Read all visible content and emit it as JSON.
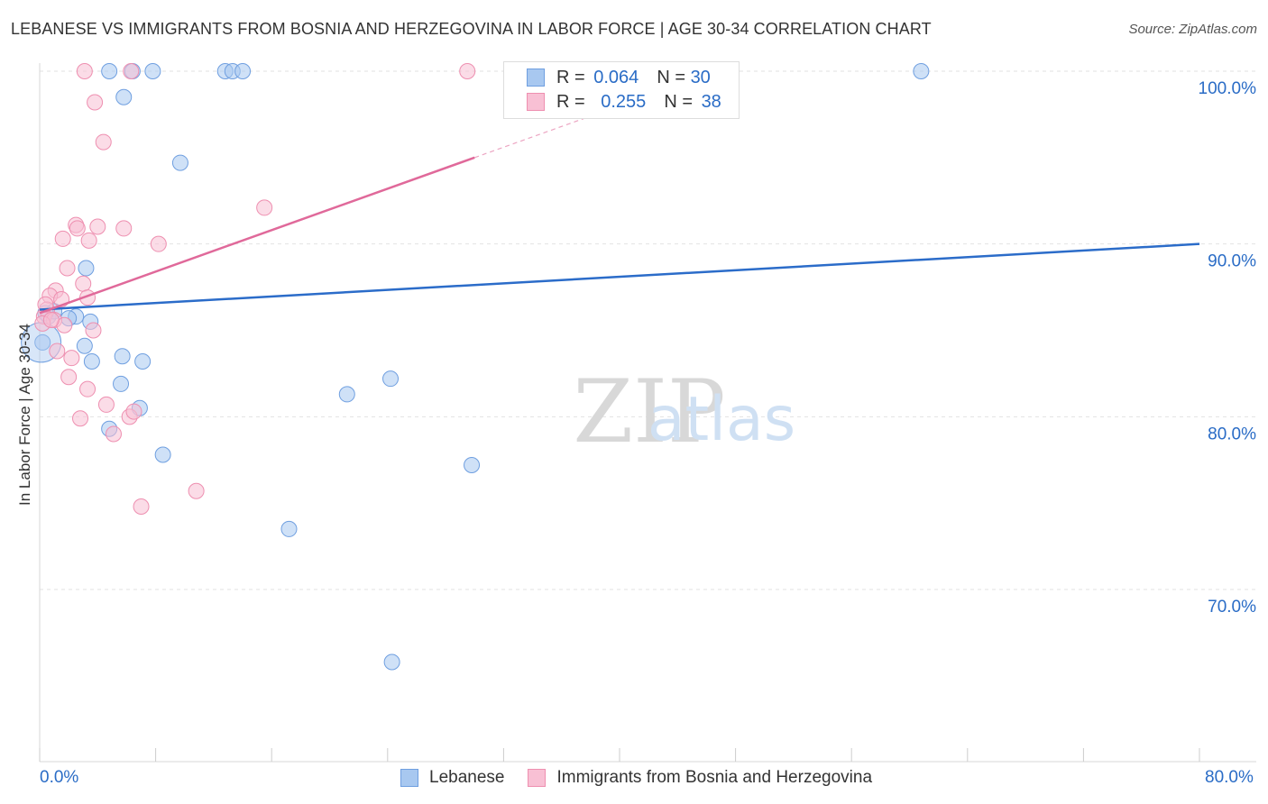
{
  "title": "LEBANESE VS IMMIGRANTS FROM BOSNIA AND HERZEGOVINA IN LABOR FORCE | AGE 30-34 CORRELATION CHART",
  "source": "Source: ZipAtlas.com",
  "watermark": {
    "zip": "ZIP",
    "atlas": "atlas"
  },
  "legend_top": {
    "rows": [
      {
        "r_label": "R =",
        "r_value": "0.064",
        "n_label": "N =",
        "n_value": "30",
        "color": "#a8c8f0",
        "border": "#6f9fe0"
      },
      {
        "r_label": "R =",
        "r_value": "0.255",
        "n_label": "N =",
        "n_value": "38",
        "color": "#f8c0d4",
        "border": "#ee8fb0"
      }
    ]
  },
  "legend_bottom": [
    {
      "label": "Lebanese",
      "color": "#a8c8f0",
      "border": "#6f9fe0"
    },
    {
      "label": "Immigrants from Bosnia and Herzegovina",
      "color": "#f8c0d4",
      "border": "#ee8fb0"
    }
  ],
  "x_min_label": "0.0%",
  "x_max_label": "80.0%",
  "chart_data": {
    "type": "scatter",
    "xlabel": "",
    "ylabel": "In Labor Force | Age 30-34",
    "xlim": [
      0,
      80
    ],
    "ylim": [
      60,
      102
    ],
    "y_ticks": [
      {
        "value": 100,
        "label": "100.0%"
      },
      {
        "value": 90,
        "label": "90.0%"
      },
      {
        "value": 80,
        "label": "80.0%"
      },
      {
        "value": 70,
        "label": "70.0%"
      }
    ],
    "x_ticks": [
      0,
      8,
      16,
      24,
      32,
      40,
      48,
      56,
      64,
      72,
      80
    ],
    "series": [
      {
        "name": "Lebanese",
        "color": "#a8c8f0",
        "stroke": "#6f9fe0",
        "line_color": "#2b6cc9",
        "trend": {
          "x0": 0,
          "y0": 86.2,
          "x1": 80,
          "y1": 90.0
        },
        "points": [
          [
            0.2,
            84.3
          ],
          [
            0.6,
            85.8
          ],
          [
            1.0,
            86.1
          ],
          [
            2.5,
            85.8
          ],
          [
            2.0,
            85.7
          ],
          [
            3.2,
            88.6
          ],
          [
            3.5,
            85.5
          ],
          [
            4.8,
            100.0
          ],
          [
            6.4,
            100.0
          ],
          [
            7.8,
            100.0
          ],
          [
            12.8,
            100.0
          ],
          [
            13.3,
            100.0
          ],
          [
            14.0,
            100.0
          ],
          [
            60.8,
            100.0
          ],
          [
            5.8,
            98.5
          ],
          [
            9.7,
            94.7
          ],
          [
            3.1,
            84.1
          ],
          [
            5.7,
            83.5
          ],
          [
            3.6,
            83.2
          ],
          [
            7.1,
            83.2
          ],
          [
            5.6,
            81.9
          ],
          [
            6.9,
            80.5
          ],
          [
            4.8,
            79.3
          ],
          [
            8.5,
            77.8
          ],
          [
            21.2,
            81.3
          ],
          [
            24.2,
            82.2
          ],
          [
            29.8,
            77.2
          ],
          [
            17.2,
            73.5
          ],
          [
            24.3,
            65.8
          ],
          [
            0.4,
            86.0
          ]
        ]
      },
      {
        "name": "Immigrants from Bosnia and Herzegovina",
        "color": "#f8c0d4",
        "stroke": "#ee8fb0",
        "line_color": "#e0699a",
        "trend": {
          "x0": 0,
          "y0": 86.0,
          "x1": 30,
          "y1": 95.0
        },
        "trend_extension": {
          "x0": 30,
          "y0": 95.0,
          "x1": 38,
          "y1": 97.4
        },
        "points": [
          [
            3.1,
            100.0
          ],
          [
            6.3,
            100.0
          ],
          [
            29.5,
            100.0
          ],
          [
            3.8,
            98.2
          ],
          [
            4.4,
            95.9
          ],
          [
            15.5,
            92.1
          ],
          [
            2.5,
            91.1
          ],
          [
            2.6,
            90.9
          ],
          [
            4.0,
            91.0
          ],
          [
            5.8,
            90.9
          ],
          [
            1.6,
            90.3
          ],
          [
            3.4,
            90.2
          ],
          [
            8.2,
            90.0
          ],
          [
            1.9,
            88.6
          ],
          [
            3.0,
            87.7
          ],
          [
            1.1,
            87.3
          ],
          [
            0.7,
            87.0
          ],
          [
            1.5,
            86.8
          ],
          [
            3.3,
            86.9
          ],
          [
            0.5,
            86.2
          ],
          [
            0.3,
            85.8
          ],
          [
            1.0,
            85.6
          ],
          [
            0.2,
            85.4
          ],
          [
            1.7,
            85.3
          ],
          [
            0.8,
            85.6
          ],
          [
            3.7,
            85.0
          ],
          [
            1.2,
            83.8
          ],
          [
            2.2,
            83.4
          ],
          [
            2.0,
            82.3
          ],
          [
            3.3,
            81.6
          ],
          [
            4.6,
            80.7
          ],
          [
            6.2,
            80.0
          ],
          [
            6.5,
            80.3
          ],
          [
            2.8,
            79.9
          ],
          [
            5.1,
            79.0
          ],
          [
            10.8,
            75.7
          ],
          [
            7.0,
            74.8
          ],
          [
            0.4,
            86.5
          ]
        ]
      }
    ]
  }
}
